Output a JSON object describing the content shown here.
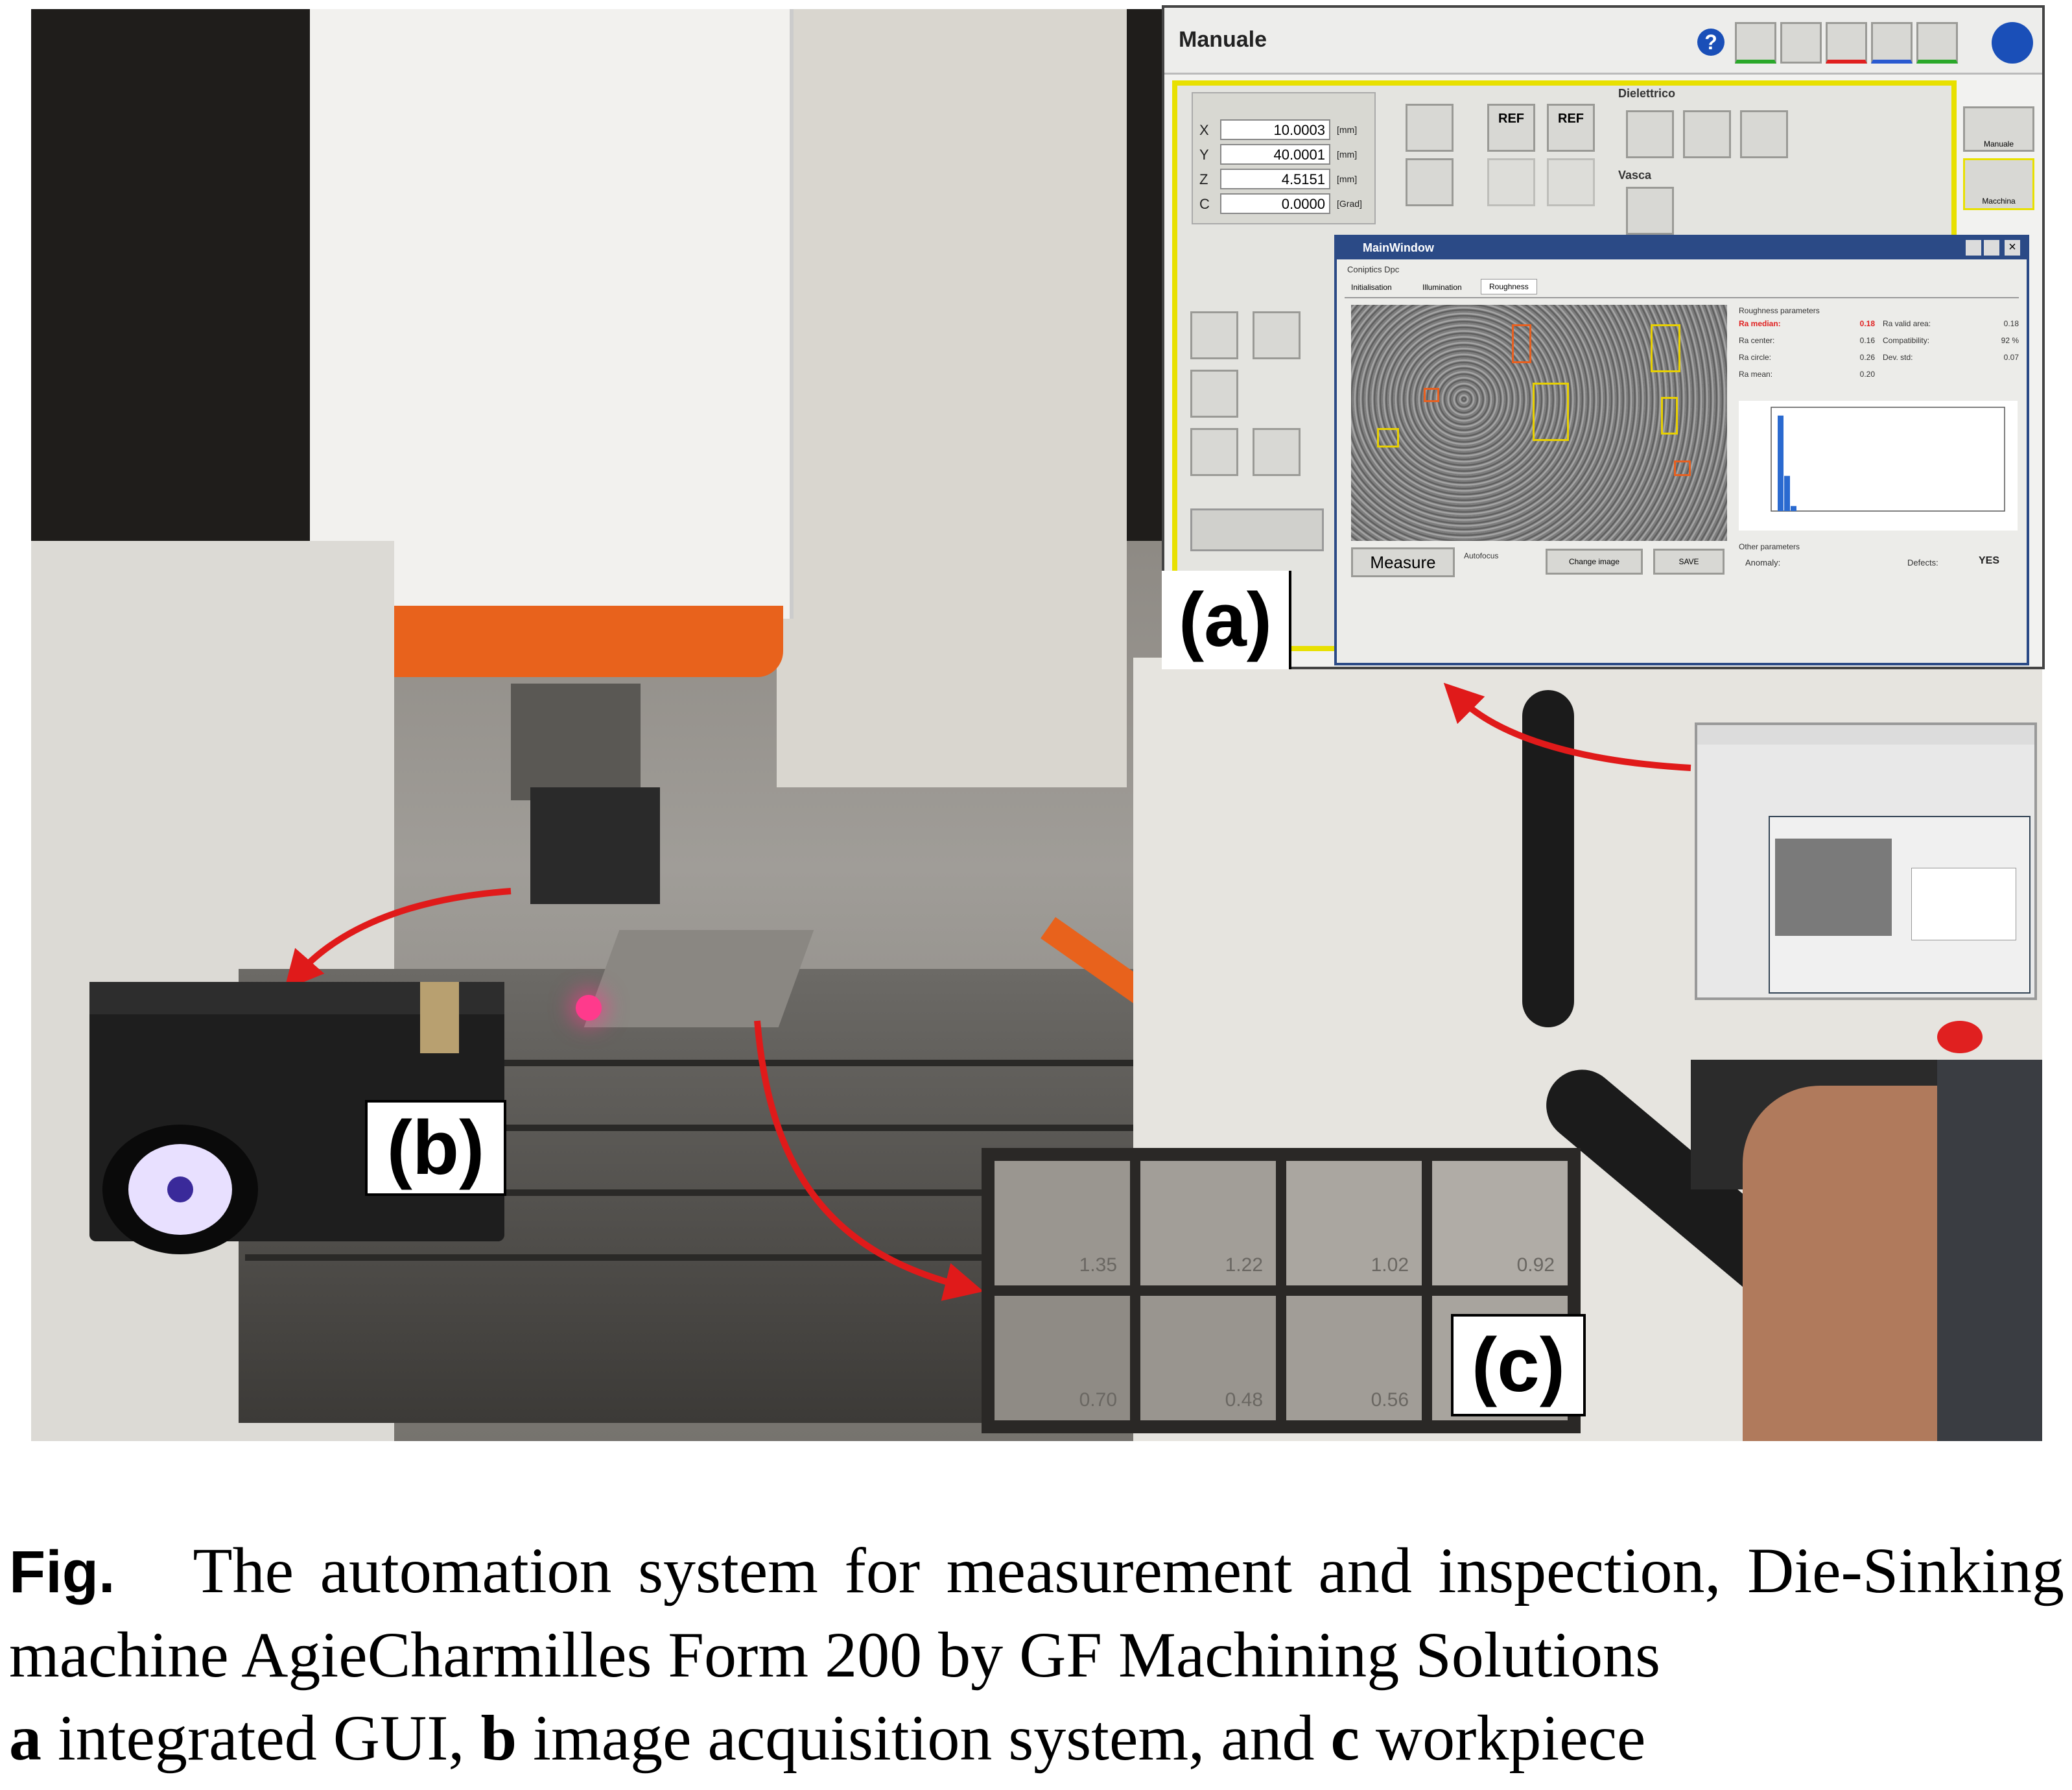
{
  "figure": {
    "caption": {
      "label": "Fig.",
      "text_1": "The automation system for measurement and inspection, Die-Sinking machine AgieCharmilles Form 200 by GF Machining Solutions",
      "bold_a": "a",
      "text_a": " integrated GUI, ",
      "bold_b": "b",
      "text_b": " image acquisition system, and ",
      "bold_c": "c",
      "text_c": " workpiece"
    },
    "tags": {
      "a": "(a)",
      "b": "(b)",
      "c": "(c)"
    }
  },
  "gui": {
    "title": "Manuale",
    "axes": [
      {
        "axis": "X",
        "value": "10.0003",
        "unit": "[mm]"
      },
      {
        "axis": "Y",
        "value": "40.0001",
        "unit": "[mm]"
      },
      {
        "axis": "Z",
        "value": "4.5151",
        "unit": "[mm]"
      },
      {
        "axis": "C",
        "value": "0.0000",
        "unit": "[Grad]"
      }
    ],
    "section_dielettrico": "Dielettrico",
    "section_vasca": "Vasca",
    "ref_label": "REF",
    "inner_window": {
      "title": "MainWindow",
      "menu": "Coniptics Dpc",
      "tabs": [
        "Initialisation",
        "Illumination",
        "Roughness"
      ],
      "roughness_header": "Roughness parameters",
      "params_left": [
        {
          "label": "Ra median:",
          "value": "0.18"
        },
        {
          "label": "Ra center:",
          "value": "0.16"
        },
        {
          "label": "Ra circle:",
          "value": "0.26"
        },
        {
          "label": "Ra mean:",
          "value": "0.20"
        }
      ],
      "params_right": [
        {
          "label": "Ra valid area:",
          "value": "0.18"
        },
        {
          "label": "Compatibility:",
          "value": "92 %"
        },
        {
          "label": "Dev. std:",
          "value": "0.07"
        }
      ],
      "other_header": "Other parameters",
      "anomaly_label": "Anomaly:",
      "defects_label": "Defects:",
      "defects_value": "YES",
      "buttons": {
        "measure": "Measure",
        "autofocus": "Autofocus",
        "change_image": "Change image",
        "save": "SAVE"
      }
    },
    "side_buttons": [
      "Manuale",
      "Macchina"
    ]
  },
  "workpiece_values": [
    "1.35",
    "1.22",
    "1.02",
    "0.92",
    "0.70",
    "0.48",
    "0.56"
  ],
  "histogram": {
    "values": [
      0.95,
      0.35,
      0.05
    ]
  },
  "colors": {
    "annotation_arrow": "#e01a1a",
    "gui_highlight": "#e8e000",
    "ra_median": "#e02020"
  }
}
